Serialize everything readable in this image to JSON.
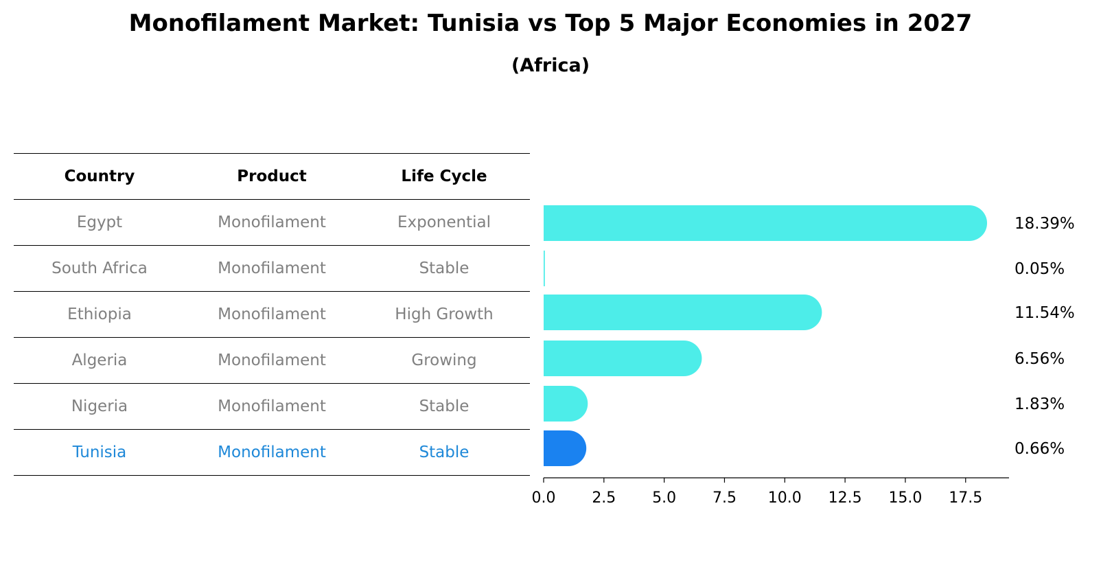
{
  "title": "Monofilament Market: Tunisia vs Top 5 Major Economies in 2027",
  "subtitle": "(Africa)",
  "table": {
    "headers": [
      "Country",
      "Product",
      "Life Cycle"
    ],
    "rows": [
      [
        "Egypt",
        "Monofilament",
        "Exponential"
      ],
      [
        "South Africa",
        "Monofilament",
        "Stable"
      ],
      [
        "Ethiopia",
        "Monofilament",
        "High Growth"
      ],
      [
        "Algeria",
        "Monofilament",
        "Growing"
      ],
      [
        "Nigeria",
        "Monofilament",
        "Stable"
      ],
      [
        "Tunisia",
        "Monofilament",
        "Stable"
      ]
    ],
    "highlight_row": 5,
    "text_color": "#808080",
    "highlight_color": "#1e88d8"
  },
  "chart_data": {
    "type": "bar",
    "orientation": "horizontal",
    "categories": [
      "Egypt",
      "South Africa",
      "Ethiopia",
      "Algeria",
      "Nigeria",
      "Tunisia"
    ],
    "values": [
      18.39,
      0.05,
      11.54,
      6.56,
      1.83,
      0.66
    ],
    "value_labels": [
      "18.39%",
      "0.05%",
      "11.54%",
      "6.56%",
      "1.83%",
      "0.66%"
    ],
    "xlim": [
      0,
      19.3
    ],
    "xticks": [
      0.0,
      2.5,
      5.0,
      7.5,
      10.0,
      12.5,
      15.0,
      17.5
    ],
    "xtick_labels": [
      "0.0",
      "2.5",
      "5.0",
      "7.5",
      "10.0",
      "12.5",
      "15.0",
      "17.5"
    ],
    "bar_color": "#4dede9",
    "highlight_color": "#1a82f0",
    "highlight_index": 5,
    "grid": false
  }
}
